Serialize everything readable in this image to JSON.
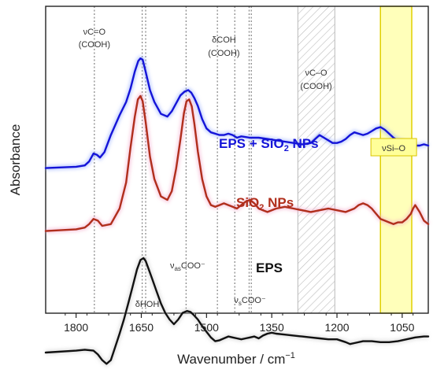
{
  "chart_data": {
    "type": "line",
    "title": "",
    "xlabel": "Wavenumber / cm",
    "xlabel_sup": "−1",
    "ylabel": "Absorbance",
    "xlim": [
      1870,
      990
    ],
    "x_reversed": true,
    "y_ticks_shown": false,
    "x_ticks": [
      1800,
      1650,
      1500,
      1350,
      1200,
      1050
    ],
    "series": [
      {
        "name": "EPS + SiO",
        "name_sub": "2",
        "name_suffix": " NPs",
        "color": "#1414d8",
        "x": [
          1870,
          1800,
          1780,
          1770,
          1760,
          1752,
          1745,
          1735,
          1720,
          1700,
          1685,
          1675,
          1665,
          1657,
          1652,
          1647,
          1640,
          1630,
          1620,
          1605,
          1590,
          1580,
          1570,
          1560,
          1550,
          1542,
          1535,
          1528,
          1520,
          1510,
          1500,
          1490,
          1480,
          1470,
          1460,
          1450,
          1440,
          1430,
          1420,
          1400,
          1380,
          1360,
          1340,
          1320,
          1300,
          1280,
          1260,
          1250,
          1240,
          1230,
          1220,
          1210,
          1200,
          1190,
          1180,
          1170,
          1160,
          1150,
          1140,
          1130,
          1120,
          1110,
          1100,
          1090,
          1080,
          1070,
          1060,
          1050,
          1040,
          1030,
          1020,
          1010,
          1000,
          990
        ],
        "y": [
          0.05,
          0.06,
          0.07,
          0.1,
          0.16,
          0.15,
          0.13,
          0.17,
          0.3,
          0.45,
          0.55,
          0.65,
          0.78,
          0.86,
          0.88,
          0.87,
          0.78,
          0.64,
          0.55,
          0.46,
          0.44,
          0.48,
          0.54,
          0.6,
          0.63,
          0.64,
          0.62,
          0.58,
          0.52,
          0.42,
          0.35,
          0.32,
          0.31,
          0.3,
          0.3,
          0.31,
          0.3,
          0.28,
          0.29,
          0.28,
          0.28,
          0.27,
          0.26,
          0.25,
          0.24,
          0.23,
          0.24,
          0.27,
          0.3,
          0.28,
          0.26,
          0.24,
          0.24,
          0.25,
          0.27,
          0.3,
          0.32,
          0.31,
          0.3,
          0.31,
          0.33,
          0.35,
          0.36,
          0.34,
          0.31,
          0.28,
          0.26,
          0.25,
          0.24,
          0.23,
          0.22,
          0.22,
          0.23,
          0.22
        ]
      },
      {
        "name": "SiO",
        "name_sub": "2",
        "name_suffix": " NPs",
        "color": "#b02e1c",
        "x": [
          1870,
          1800,
          1780,
          1770,
          1760,
          1750,
          1740,
          1720,
          1700,
          1685,
          1675,
          1665,
          1658,
          1652,
          1647,
          1640,
          1630,
          1620,
          1605,
          1590,
          1580,
          1570,
          1560,
          1552,
          1546,
          1540,
          1534,
          1528,
          1520,
          1510,
          1500,
          1490,
          1480,
          1470,
          1460,
          1450,
          1440,
          1430,
          1420,
          1410,
          1400,
          1390,
          1380,
          1370,
          1360,
          1340,
          1320,
          1300,
          1280,
          1260,
          1240,
          1220,
          1200,
          1180,
          1160,
          1150,
          1140,
          1130,
          1120,
          1110,
          1100,
          1090,
          1080,
          1070,
          1060,
          1050,
          1040,
          1030,
          1025,
          1020,
          1010,
          1000,
          990
        ],
        "y": [
          -0.08,
          -0.07,
          -0.06,
          -0.04,
          -0.01,
          -0.02,
          -0.05,
          -0.04,
          0.05,
          0.2,
          0.4,
          0.58,
          0.68,
          0.7,
          0.67,
          0.55,
          0.35,
          0.22,
          0.12,
          0.1,
          0.15,
          0.28,
          0.45,
          0.6,
          0.67,
          0.68,
          0.64,
          0.54,
          0.38,
          0.22,
          0.12,
          0.07,
          0.06,
          0.07,
          0.08,
          0.07,
          0.06,
          0.05,
          0.07,
          0.09,
          0.1,
          0.08,
          0.05,
          0.04,
          0.03,
          0.05,
          0.06,
          0.05,
          0.04,
          0.03,
          0.04,
          0.05,
          0.04,
          0.03,
          0.05,
          0.07,
          0.08,
          0.07,
          0.05,
          0.02,
          -0.01,
          -0.02,
          -0.03,
          -0.04,
          -0.03,
          -0.03,
          -0.01,
          0.02,
          0.05,
          0.07,
          0.03,
          -0.02,
          -0.04
        ]
      },
      {
        "name": "EPS",
        "color": "#111111",
        "x": [
          1870,
          1800,
          1780,
          1760,
          1750,
          1740,
          1730,
          1720,
          1710,
          1700,
          1690,
          1680,
          1670,
          1660,
          1652,
          1645,
          1640,
          1632,
          1625,
          1615,
          1605,
          1595,
          1585,
          1575,
          1565,
          1555,
          1545,
          1537,
          1530,
          1520,
          1510,
          1500,
          1490,
          1480,
          1470,
          1460,
          1450,
          1440,
          1430,
          1420,
          1410,
          1400,
          1390,
          1380,
          1370,
          1360,
          1350,
          1340,
          1320,
          1300,
          1280,
          1260,
          1240,
          1220,
          1200,
          1180,
          1170,
          1160,
          1140,
          1120,
          1100,
          1080,
          1060,
          1040,
          1020,
          1000,
          990
        ],
        "y": [
          -0.4,
          -0.38,
          -0.37,
          -0.38,
          -0.42,
          -0.48,
          -0.52,
          -0.48,
          -0.34,
          -0.2,
          -0.05,
          0.12,
          0.3,
          0.48,
          0.58,
          0.6,
          0.57,
          0.47,
          0.38,
          0.25,
          0.12,
          0.02,
          -0.05,
          -0.1,
          -0.05,
          0.02,
          0.04,
          0.03,
          0.0,
          -0.05,
          -0.12,
          -0.18,
          -0.24,
          -0.28,
          -0.27,
          -0.25,
          -0.23,
          -0.24,
          -0.25,
          -0.26,
          -0.25,
          -0.24,
          -0.23,
          -0.25,
          -0.22,
          -0.2,
          -0.19,
          -0.2,
          -0.21,
          -0.22,
          -0.23,
          -0.24,
          -0.25,
          -0.26,
          -0.26,
          -0.29,
          -0.31,
          -0.3,
          -0.28,
          -0.28,
          -0.29,
          -0.29,
          -0.28,
          -0.26,
          -0.24,
          -0.23,
          -0.23
        ]
      }
    ],
    "vlines": [
      1758,
      1648,
      1640,
      1547,
      1475,
      1435,
      1402,
      1397
    ],
    "hatched_band": [
      1290,
      1205
    ],
    "highlight_band": [
      1100,
      1028
    ],
    "highlight_color": "#ffff66",
    "annotations": [
      {
        "lines": [
          "νC=O",
          "(COOH)"
        ],
        "x": 1758
      },
      {
        "lines": [
          "δCOH",
          "(COOH)"
        ],
        "x": 1460
      },
      {
        "lines": [
          "νC–O",
          "(COOH)"
        ],
        "x": 1248
      },
      {
        "lines": [
          "νSi–O"
        ],
        "x": 1064
      },
      {
        "lines": [
          "δHOH"
        ],
        "x": 1640
      },
      {
        "text": "ν",
        "sub": "as",
        "suffix": "COO⁻",
        "x": 1547
      },
      {
        "text": "ν",
        "sub": "s",
        "suffix": "COO⁻",
        "x": 1400
      }
    ]
  }
}
